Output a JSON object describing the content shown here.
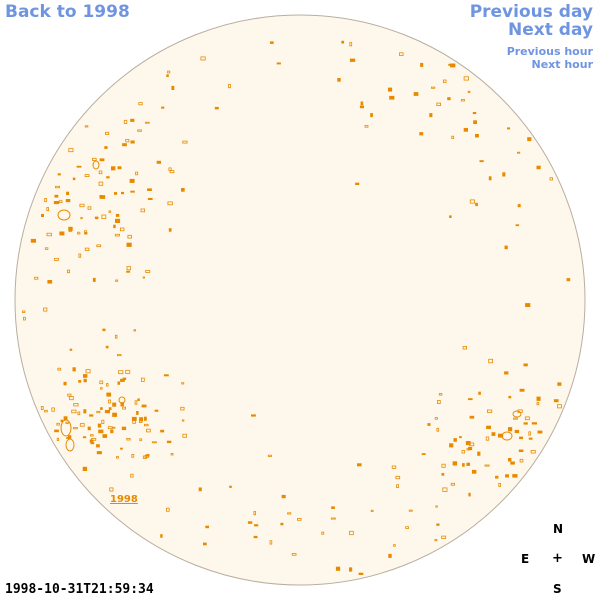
{
  "nav": {
    "back": "Back to 1998",
    "previous_day": "Previous day",
    "next_day": "Next day",
    "previous_hour": "Previous hour",
    "next_hour": "Next hour"
  },
  "disk": {
    "year_label": "1998"
  },
  "compass": {
    "n": "N",
    "e": "E",
    "center": "+",
    "w": "W",
    "s": "S"
  },
  "timestamp": "1998-10-31T21:59:34",
  "colors": {
    "disk": "#fdf8eb",
    "rim": "#b9ae9f",
    "contour": "#e88a00",
    "link": "#6f95e0"
  }
}
